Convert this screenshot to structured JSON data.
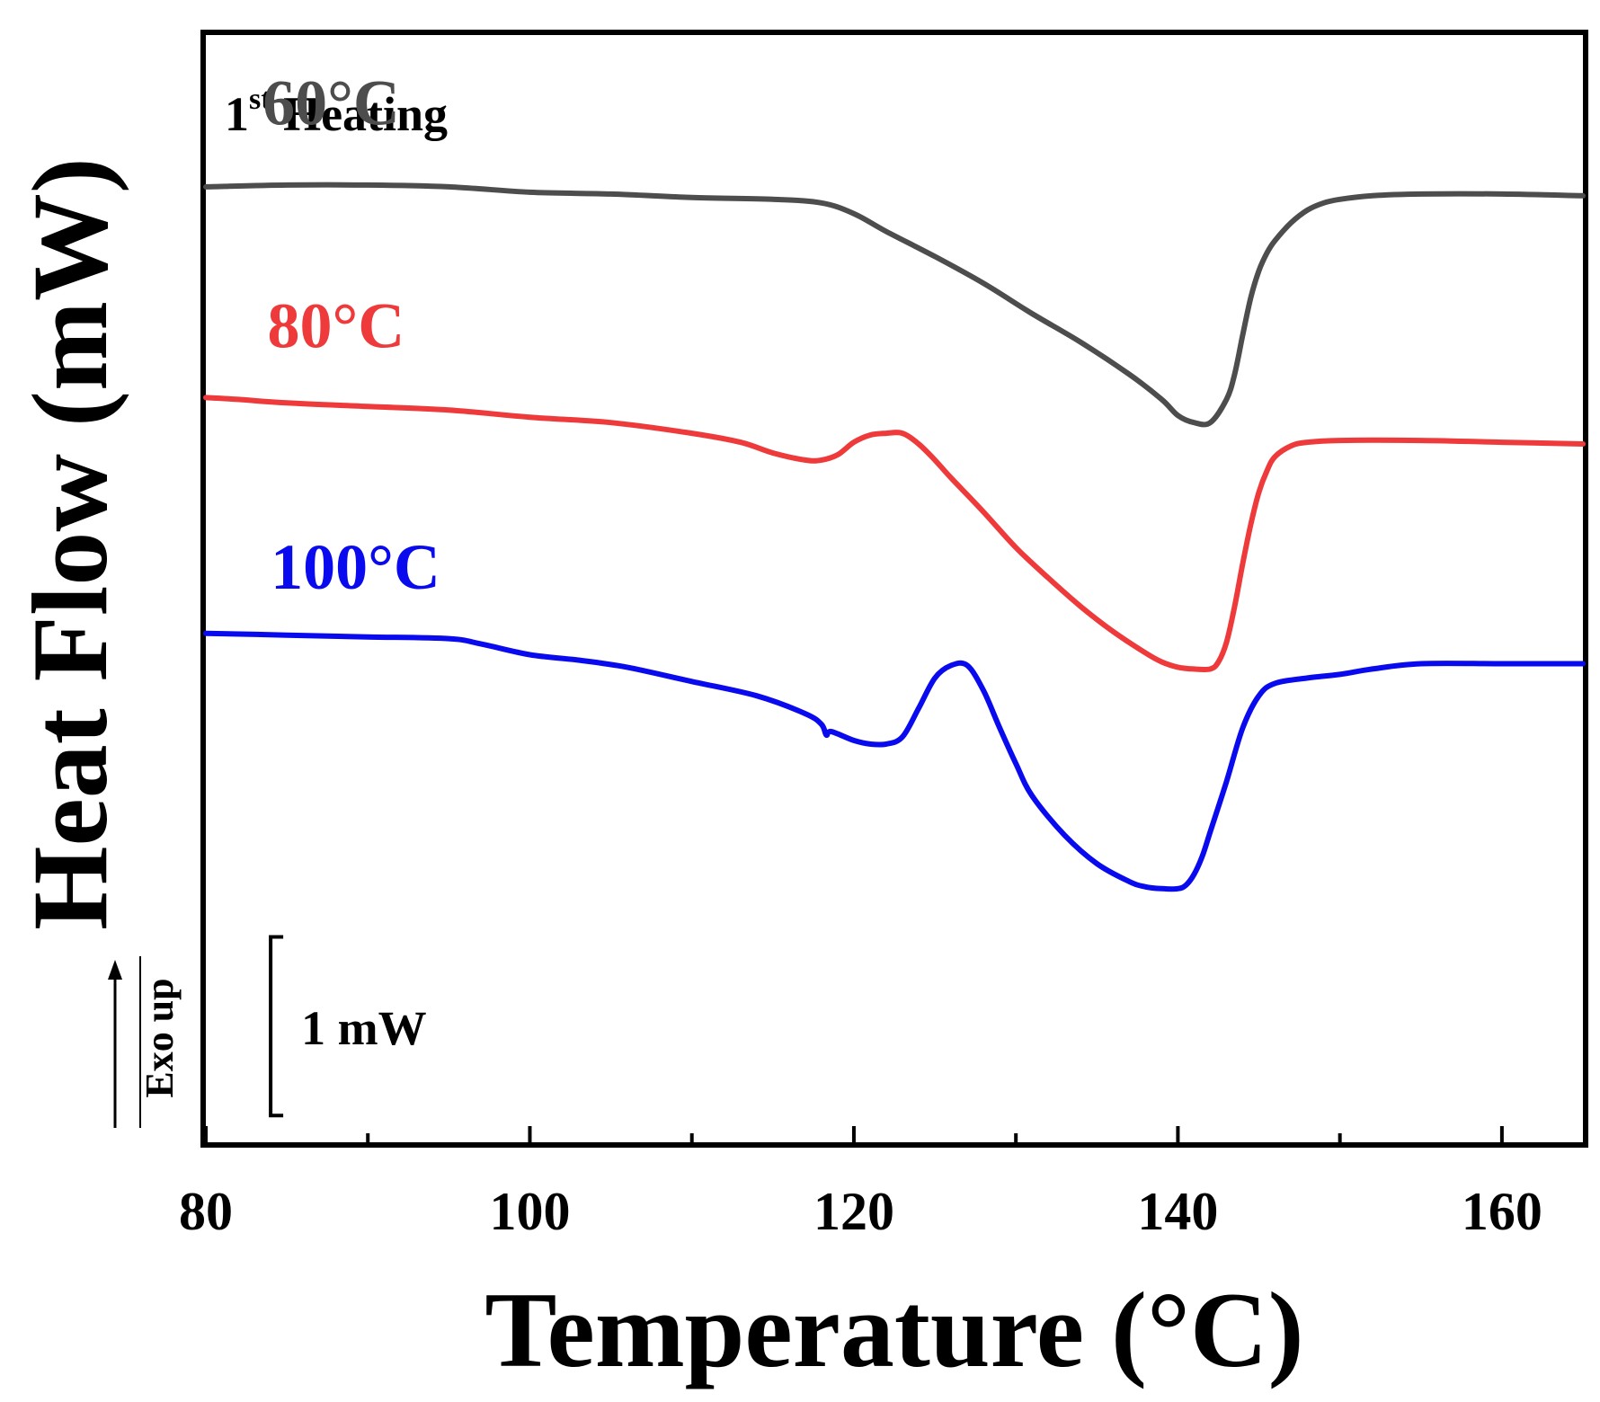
{
  "chart_data": {
    "type": "line",
    "title": "",
    "annotation_title": {
      "main": "1",
      "superscript": "st",
      "rest": " Heating"
    },
    "xlabel": "Temperature (°C)",
    "ylabel": "Heat Flow (mW)",
    "exo_label": "Exo up",
    "xlim": [
      80,
      165
    ],
    "ylim": [
      -0.9,
      5.3
    ],
    "x_ticks": [
      80,
      100,
      120,
      140,
      160
    ],
    "x_tick_labels": [
      "80",
      "100",
      "120",
      "140",
      "160"
    ],
    "x_minor_ticks": [
      90,
      110,
      130,
      150
    ],
    "scale_bar": {
      "label": "1 mW",
      "value": 1,
      "x": 84,
      "y_bottom": -0.75
    },
    "series": [
      {
        "name": "60°C",
        "label": "60°C",
        "color": "#4d4d4d",
        "label_pos": [
          83.5,
          4.8
        ],
        "x": [
          80,
          85,
          90,
          95,
          100,
          105,
          110,
          115,
          118,
          120,
          122,
          125,
          128,
          131,
          134,
          137,
          139,
          140,
          141,
          142,
          143,
          143.5,
          144,
          144.5,
          145,
          145.5,
          146,
          147,
          148,
          149,
          150,
          152,
          155,
          160,
          165
        ],
        "y": [
          4.45,
          4.46,
          4.46,
          4.45,
          4.42,
          4.41,
          4.39,
          4.38,
          4.36,
          4.3,
          4.2,
          4.06,
          3.91,
          3.74,
          3.58,
          3.4,
          3.26,
          3.17,
          3.13,
          3.13,
          3.26,
          3.4,
          3.62,
          3.83,
          3.98,
          4.08,
          4.15,
          4.25,
          4.32,
          4.36,
          4.38,
          4.4,
          4.41,
          4.41,
          4.4
        ]
      },
      {
        "name": "80°C",
        "label": "80°C",
        "color": "#ee3a3a",
        "label_pos": [
          83.8,
          3.55
        ],
        "x": [
          80,
          82,
          85,
          90,
          95,
          100,
          105,
          110,
          113,
          115,
          117,
          118,
          119,
          120,
          121,
          122,
          123,
          124,
          125,
          126,
          128,
          130,
          132,
          134,
          136,
          138,
          139,
          140,
          141,
          142,
          142.5,
          143,
          143.5,
          144,
          144.5,
          145,
          145.5,
          146,
          147,
          148,
          150,
          155,
          160,
          165
        ],
        "y": [
          3.27,
          3.26,
          3.24,
          3.22,
          3.2,
          3.16,
          3.13,
          3.07,
          3.02,
          2.96,
          2.92,
          2.92,
          2.95,
          3.02,
          3.06,
          3.07,
          3.07,
          3.01,
          2.92,
          2.82,
          2.63,
          2.43,
          2.26,
          2.1,
          1.96,
          1.84,
          1.79,
          1.76,
          1.75,
          1.75,
          1.79,
          1.9,
          2.1,
          2.34,
          2.56,
          2.74,
          2.86,
          2.94,
          3.0,
          3.02,
          3.03,
          3.03,
          3.02,
          3.01
        ]
      },
      {
        "name": "100°C",
        "label": "100°C",
        "color": "#0a0aee",
        "label_pos": [
          84,
          2.2
        ],
        "x": [
          80,
          85,
          90,
          95,
          97,
          100,
          103,
          106,
          110,
          114,
          117,
          118,
          118.3,
          118.6,
          120,
          121,
          122,
          123,
          124,
          125,
          126,
          127,
          128,
          129,
          130,
          131,
          133,
          135,
          137,
          138,
          139,
          140,
          140.5,
          141,
          141.5,
          142,
          143,
          144,
          145,
          146,
          148,
          150,
          152,
          155,
          160,
          165
        ],
        "y": [
          1.95,
          1.94,
          1.93,
          1.92,
          1.89,
          1.83,
          1.8,
          1.76,
          1.68,
          1.6,
          1.5,
          1.44,
          1.38,
          1.4,
          1.35,
          1.33,
          1.33,
          1.37,
          1.53,
          1.7,
          1.77,
          1.77,
          1.63,
          1.42,
          1.22,
          1.04,
          0.82,
          0.66,
          0.56,
          0.53,
          0.52,
          0.52,
          0.54,
          0.6,
          0.7,
          0.84,
          1.12,
          1.42,
          1.6,
          1.67,
          1.7,
          1.72,
          1.75,
          1.78,
          1.78,
          1.78
        ]
      }
    ]
  }
}
